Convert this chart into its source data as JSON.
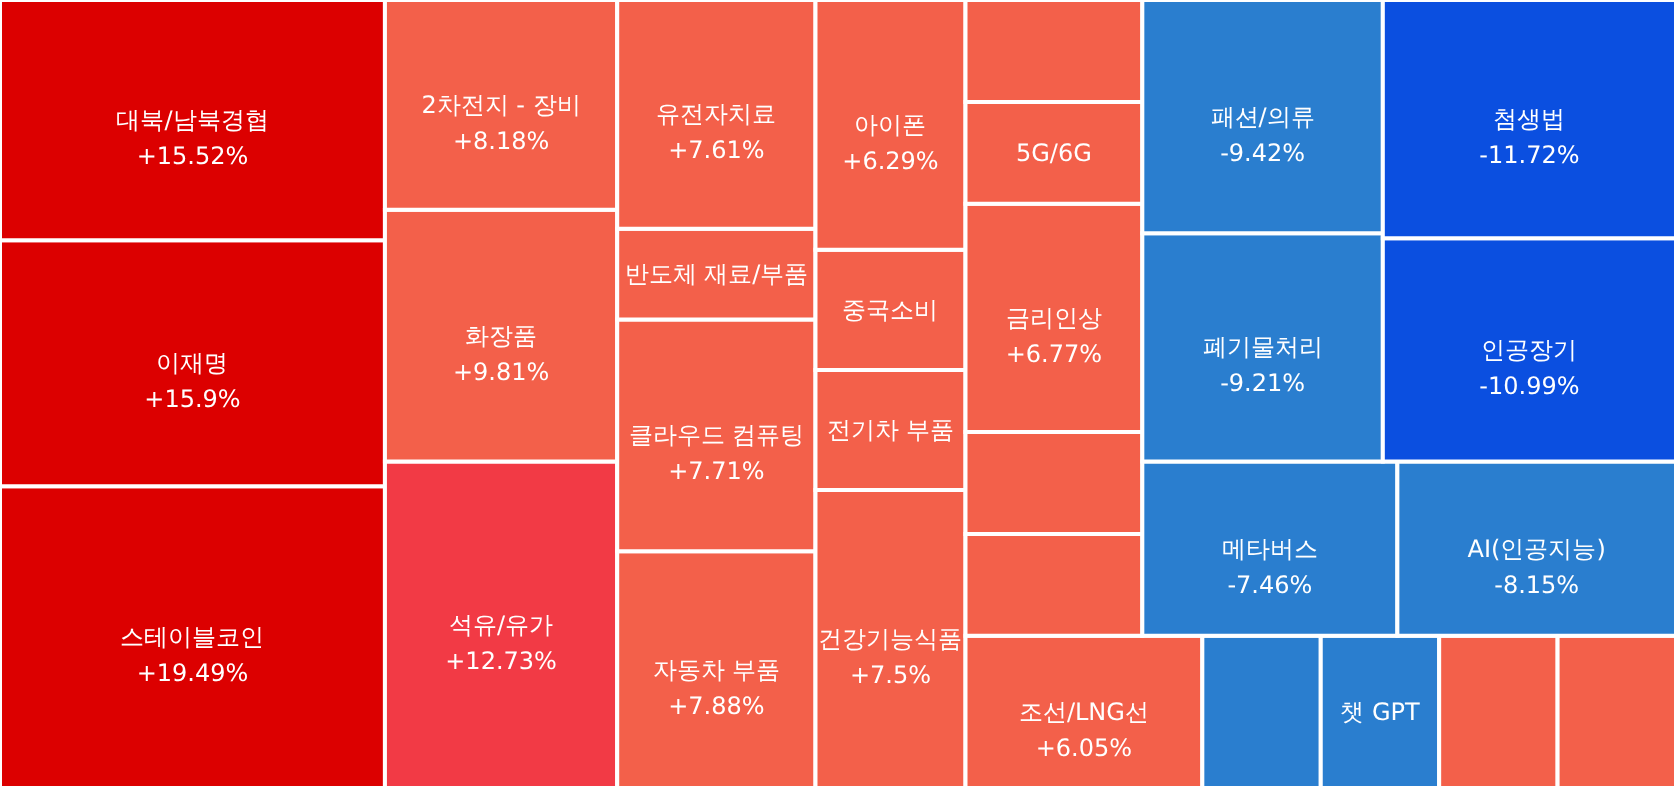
{
  "chart_data": {
    "type": "other",
    "categories": [
      "스테이블코인",
      "이재명",
      "대북/남북경협",
      "석유/유가",
      "화장품",
      "2차전지 - 장비",
      "자동차 부품",
      "클라우드 컴퓨팅",
      "반도체 재료/부품",
      "유전자치료",
      "건강기능식품",
      "전기차 부품",
      "중국소비",
      "아이폰",
      "조선/LNG선",
      null,
      "챗 GPT",
      null,
      null,
      null,
      null,
      "금리인상",
      "5G/6G",
      null,
      "메타버스",
      "AI(인공지능)",
      "폐기물처리",
      "패션/의류",
      "인공장기",
      "첨생법"
    ],
    "values": [
      19.49,
      15.9,
      15.52,
      12.73,
      9.81,
      8.18,
      7.88,
      7.71,
      null,
      7.61,
      7.5,
      null,
      null,
      6.29,
      6.05,
      null,
      null,
      null,
      null,
      null,
      null,
      6.77,
      null,
      null,
      -7.46,
      -8.15,
      -9.21,
      -9.42,
      -10.99,
      -11.72
    ],
    "value_labels": [
      "+19.49%",
      "+15.9%",
      "+15.52%",
      "+12.73%",
      "+9.81%",
      "+8.18%",
      "+7.88%",
      "+7.71%",
      null,
      "+7.61%",
      "+7.5%",
      null,
      null,
      "+6.29%",
      "+6.05%",
      null,
      null,
      null,
      null,
      null,
      null,
      "+6.77%",
      null,
      null,
      "-7.46%",
      "-8.15%",
      "-9.21%",
      "-9.42%",
      "-10.99%",
      "-11.72%"
    ],
    "colors": [
      "#dc0000",
      "#dc0000",
      "#dc0000",
      "#f23a45",
      "#f3604a",
      "#f3604a",
      "#f3604a",
      "#f3604a",
      "#f3604a",
      "#f3604a",
      "#f3604a",
      "#f3604a",
      "#f3604a",
      "#f3604a",
      "#f3604a",
      "#2a7ecf",
      "#2a7ecf",
      "#f3604a",
      "#f3604a",
      "#f3604a",
      "#f3604a",
      "#f3604a",
      "#f3604a",
      "#f3604a",
      "#2a7ecf",
      "#2a7ecf",
      "#2a7ecf",
      "#2a7ecf",
      "#0b4fe0",
      "#0b4fe0"
    ]
  }
}
